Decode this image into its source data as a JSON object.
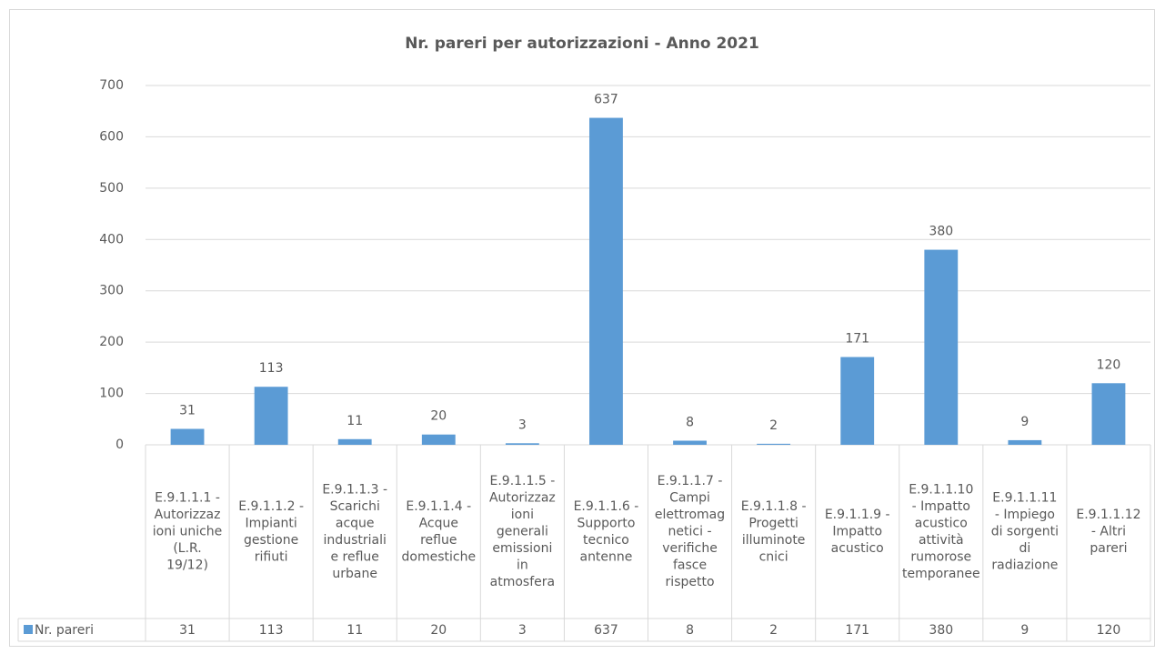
{
  "chart_data": {
    "type": "bar",
    "title": "Nr. pareri per autorizzazioni - Anno 2021",
    "categories": [
      "E.9.1.1.1 - Autorizzazioni uniche (L.R. 19/12)",
      "E.9.1.1.2 - Impianti gestione rifiuti",
      "E.9.1.1.3 - Scarichi acque industriali e reflue urbane",
      "E.9.1.1.4 - Acque reflue domestiche",
      "E.9.1.1.5 - Autorizzazioni generali emissioni in atmosfera",
      "E.9.1.1.6 - Supporto tecnico antenne",
      "E.9.1.1.7 - Campi elettromagnetici - verifiche fasce rispetto",
      "E.9.1.1.8 - Progetti illuminotecnici",
      "E.9.1.1.9 - Impatto acustico",
      "E.9.1.1.10 - Impatto acustico attività rumorose temporanee",
      "E.9.1.1.11 - Impiego di sorgenti di radiazione",
      "E.9.1.1.12 - Altri pareri"
    ],
    "series": [
      {
        "name": "Nr. pareri",
        "color": "#5b9bd5",
        "values": [
          31,
          113,
          11,
          20,
          3,
          637,
          8,
          2,
          171,
          380,
          9,
          120
        ]
      }
    ],
    "ylim": [
      0,
      700
    ],
    "yticks": [
      0,
      100,
      200,
      300,
      400,
      500,
      600,
      700
    ],
    "grid": true
  }
}
